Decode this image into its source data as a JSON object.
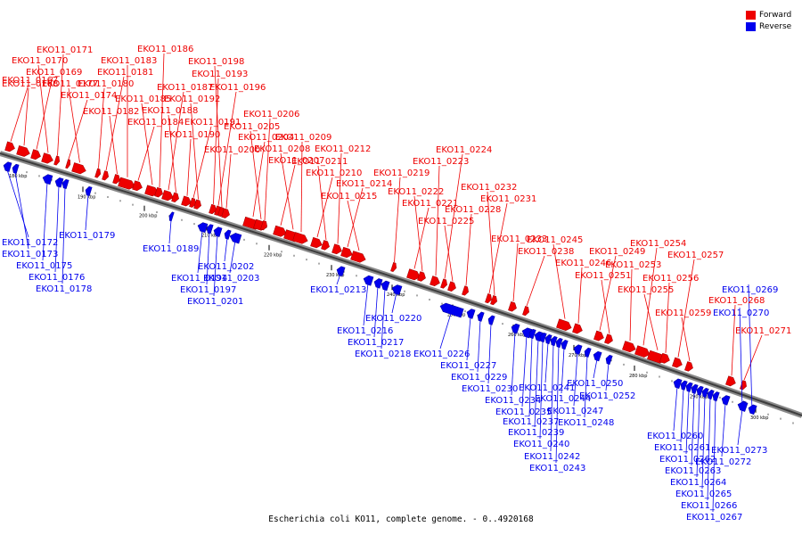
{
  "title": "Escherichia coli KO11, complete genome. - 0..4920168",
  "legend": [
    {
      "label": "Forward",
      "color": "#ee0000"
    },
    {
      "label": "Reverse",
      "color": "#0000ee"
    }
  ],
  "colors": {
    "forward": "#ee0000",
    "reverse": "#0000ee",
    "backbone": "#777777"
  },
  "chart_data": {
    "type": "genome-map",
    "axis_unit": "kbp",
    "axis_ticks": [
      "180 kbp",
      "190 kbp",
      "200 kbp",
      "210 kbp",
      "220 kbp",
      "230 kbp",
      "240 kbp",
      "250 kbp",
      "260 kbp",
      "270 kbp",
      "280 kbp",
      "290 kbp",
      "300 kbp"
    ],
    "forward_genes": [
      "EKO11_0167",
      "EKO11_0168",
      "EKO11_0169",
      "EKO11_0170",
      "EKO11_0171",
      "EKO11_0174",
      "EKO11_0177",
      "EKO11_0180",
      "EKO11_0181",
      "EKO11_0182",
      "EKO11_0183",
      "EKO11_0184",
      "EKO11_0185",
      "EKO11_0186",
      "EKO11_0187",
      "EKO11_0188",
      "EKO11_0190",
      "EKO11_0191",
      "EKO11_0192",
      "EKO11_0193",
      "EKO11_0196",
      "EKO11_0198",
      "EKO11_0200",
      "EKO11_0204",
      "EKO11_0205",
      "EKO11_0206",
      "EKO11_0207",
      "EKO11_0208",
      "EKO11_0209",
      "EKO11_0210",
      "EKO11_0211",
      "EKO11_0212",
      "EKO11_0214",
      "EKO11_0215",
      "EKO11_0219",
      "EKO11_0221",
      "EKO11_0222",
      "EKO11_0223",
      "EKO11_0224",
      "EKO11_0225",
      "EKO11_0228",
      "EKO11_0231",
      "EKO11_0232",
      "EKO11_0233",
      "EKO11_0238",
      "EKO11_0245",
      "EKO11_0246",
      "EKO11_0249",
      "EKO11_0251",
      "EKO11_0253",
      "EKO11_0254",
      "EKO11_0255",
      "EKO11_0256",
      "EKO11_0257",
      "EKO11_0259",
      "EKO11_0268",
      "EKO11_0271"
    ],
    "reverse_genes": [
      "EKO11_0172",
      "EKO11_0173",
      "EKO11_0175",
      "EKO11_0176",
      "EKO11_0178",
      "EKO11_0179",
      "EKO11_0189",
      "EKO11_0194",
      "EKO11_0197",
      "EKO11_0201",
      "EKO11_0202",
      "EKO11_0203",
      "EKO11_0213",
      "EKO11_0216",
      "EKO11_0217",
      "EKO11_0218",
      "EKO11_0220",
      "EKO11_0226",
      "EKO11_0227",
      "EKO11_0229",
      "EKO11_0230",
      "EKO11_0234",
      "EKO11_0235",
      "EKO11_0237",
      "EKO11_0239",
      "EKO11_0240",
      "EKO11_0241",
      "EKO11_0242",
      "EKO11_0243",
      "EKO11_0244",
      "EKO11_0247",
      "EKO11_0248",
      "EKO11_0250",
      "EKO11_0252",
      "EKO11_0260",
      "EKO11_0261",
      "EKO11_0262",
      "EKO11_0263",
      "EKO11_0264",
      "EKO11_0265",
      "EKO11_0266",
      "EKO11_0267",
      "EKO11_0269",
      "EKO11_0270",
      "EKO11_0272",
      "EKO11_0273"
    ]
  }
}
